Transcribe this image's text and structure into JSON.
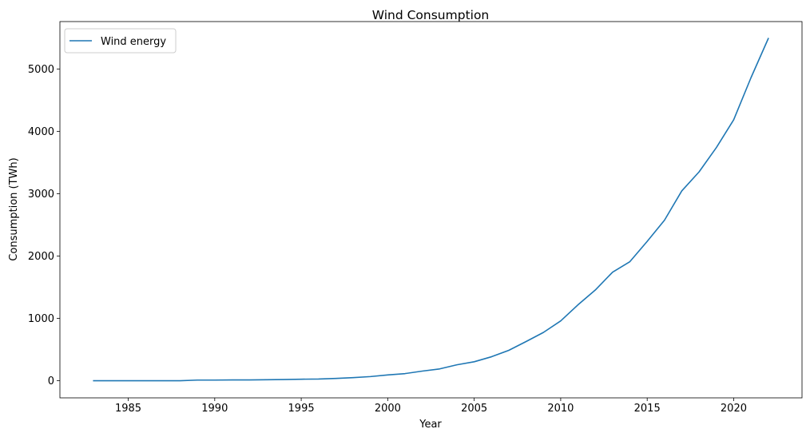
{
  "chart_data": {
    "type": "line",
    "title": "Wind Consumption",
    "xlabel": "Year",
    "ylabel": "Consumption (TWh)",
    "xlim": [
      1981.05,
      2023.95
    ],
    "ylim": [
      -274,
      5760
    ],
    "xticks": [
      1985,
      1990,
      1995,
      2000,
      2005,
      2010,
      2015,
      2020
    ],
    "yticks": [
      0,
      1000,
      2000,
      3000,
      4000,
      5000
    ],
    "legend": {
      "position": "top-left",
      "entries": [
        "Wind energy"
      ]
    },
    "grid": false,
    "series": [
      {
        "name": "Wind energy",
        "color": "#1f77b4",
        "x": [
          1983,
          1984,
          1985,
          1986,
          1987,
          1988,
          1989,
          1990,
          1991,
          1992,
          1993,
          1994,
          1995,
          1996,
          1997,
          1998,
          1999,
          2000,
          2001,
          2002,
          2003,
          2004,
          2005,
          2006,
          2007,
          2008,
          2009,
          2010,
          2011,
          2012,
          2013,
          2014,
          2015,
          2016,
          2017,
          2018,
          2019,
          2020,
          2021,
          2022
        ],
        "y": [
          0,
          0,
          0,
          0,
          0,
          1,
          11,
          11,
          13,
          14,
          17,
          20,
          25,
          28,
          38,
          50,
          67,
          94,
          115,
          155,
          190,
          256,
          305,
          385,
          488,
          629,
          775,
          960,
          1218,
          1455,
          1742,
          1910,
          2235,
          2575,
          3045,
          3350,
          3740,
          4185,
          4860,
          5488
        ]
      }
    ]
  }
}
